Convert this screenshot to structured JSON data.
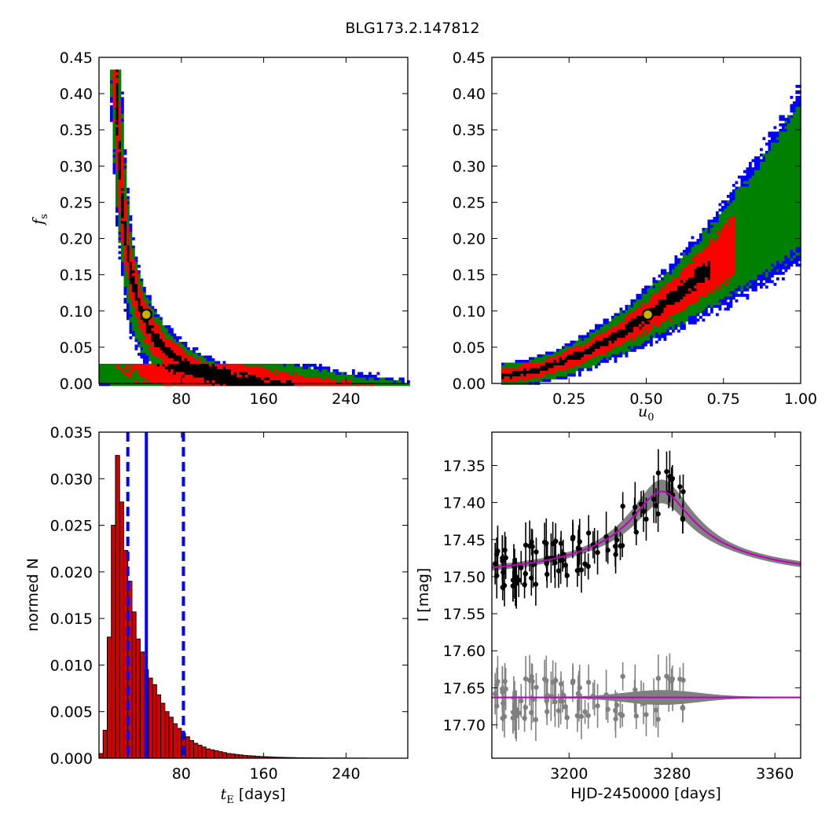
{
  "figure": {
    "title": "BLG173.2.147812",
    "colors": {
      "sigma3": "#0000ff",
      "sigma2": "#008000",
      "sigma1": "#ff0000",
      "peak": "#000000",
      "marker_fill": "#c8b400",
      "hist_fill": "#d40000",
      "model": "#bf00bf",
      "band": "#808080",
      "vline": "#0000ff"
    }
  },
  "chart_data": [
    {
      "id": "te_fs",
      "type": "heatmap",
      "title": "",
      "xlabel": "",
      "ylabel": "f_s",
      "xlim": [
        0,
        300
      ],
      "ylim": [
        0.0,
        0.45
      ],
      "xticks": [
        80,
        160,
        240
      ],
      "xtick_labels": [
        "80",
        "160",
        "240"
      ],
      "yticks": [
        0.0,
        0.05,
        0.1,
        0.15,
        0.2,
        0.25,
        0.3,
        0.35,
        0.4,
        0.45
      ],
      "ytick_labels": [
        "0.00",
        "0.05",
        "0.10",
        "0.15",
        "0.20",
        "0.25",
        "0.30",
        "0.35",
        "0.40",
        "0.45"
      ],
      "levels": [
        "3-sigma",
        "2-sigma",
        "1-sigma",
        "peak"
      ],
      "best_fit": [
        46,
        0.095
      ]
    },
    {
      "id": "u0_fs",
      "type": "heatmap",
      "title": "",
      "xlabel": "u_0",
      "ylabel": "",
      "xlim": [
        0.0,
        1.0
      ],
      "ylim": [
        0.0,
        0.45
      ],
      "xticks": [
        0.25,
        0.5,
        0.75,
        1.0
      ],
      "xtick_labels": [
        "0.25",
        "0.50",
        "0.75",
        "1.00"
      ],
      "yticks": [
        0.0,
        0.05,
        0.1,
        0.15,
        0.2,
        0.25,
        0.3,
        0.35,
        0.4,
        0.45
      ],
      "ytick_labels": [
        "0.00",
        "0.05",
        "0.10",
        "0.15",
        "0.20",
        "0.25",
        "0.30",
        "0.35",
        "0.40",
        "0.45"
      ],
      "best_fit": [
        0.505,
        0.095
      ]
    },
    {
      "id": "te_hist",
      "type": "bar",
      "title": "",
      "xlabel": "t_E  [days]",
      "ylabel": "normed N",
      "xlim": [
        0,
        300
      ],
      "ylim": [
        0.0,
        0.035
      ],
      "xticks": [
        80,
        160,
        240
      ],
      "xtick_labels": [
        "80",
        "160",
        "240"
      ],
      "yticks": [
        0.0,
        0.005,
        0.01,
        0.015,
        0.02,
        0.025,
        0.03,
        0.035
      ],
      "ytick_labels": [
        "0.000",
        "0.005",
        "0.010",
        "0.015",
        "0.020",
        "0.025",
        "0.030",
        "0.035"
      ],
      "bin_width": 4,
      "x_start": 0,
      "values": [
        0.0005,
        0.003,
        0.013,
        0.025,
        0.0325,
        0.0275,
        0.0223,
        0.019,
        0.0157,
        0.0128,
        0.0114,
        0.0095,
        0.0086,
        0.0079,
        0.0068,
        0.0059,
        0.005,
        0.0044,
        0.0037,
        0.0032,
        0.0027,
        0.0023,
        0.0019,
        0.0016,
        0.0014,
        0.0012,
        0.001,
        0.0009,
        0.0008,
        0.0007,
        0.0006,
        0.0005,
        0.00045,
        0.0004,
        0.00035,
        0.0003,
        0.00027,
        0.00024,
        0.0002,
        0.00018,
        0.00016,
        0.00014,
        0.00012,
        0.0001,
        9e-05,
        8e-05,
        7e-05,
        6e-05,
        5e-05,
        5e-05,
        4e-05,
        4e-05,
        3e-05,
        3e-05,
        3e-05,
        2e-05,
        2e-05,
        2e-05,
        2e-05,
        2e-05,
        1e-05,
        1e-05,
        1e-05,
        1e-05,
        1e-05
      ],
      "median": 46,
      "interval": [
        28,
        82
      ]
    },
    {
      "id": "lightcurve",
      "type": "scatter",
      "title": "",
      "xlabel": "HJD-2450000 [days]",
      "ylabel": "I [mag]",
      "xlim": [
        3140,
        3380
      ],
      "ylim": [
        17.745,
        17.305
      ],
      "xticks": [
        3200,
        3280,
        3360
      ],
      "xtick_labels": [
        "3200",
        "3280",
        "3360"
      ],
      "yticks": [
        17.35,
        17.4,
        17.45,
        17.5,
        17.55,
        17.6,
        17.65,
        17.7
      ],
      "ytick_labels": [
        "17.35",
        "17.40",
        "17.45",
        "17.50",
        "17.55",
        "17.60",
        "17.65",
        "17.70"
      ],
      "model": {
        "t0": 3272,
        "baseline": 17.495,
        "peak_depth": 0.11,
        "width": 22
      },
      "residual_offset": 17.663
    }
  ]
}
